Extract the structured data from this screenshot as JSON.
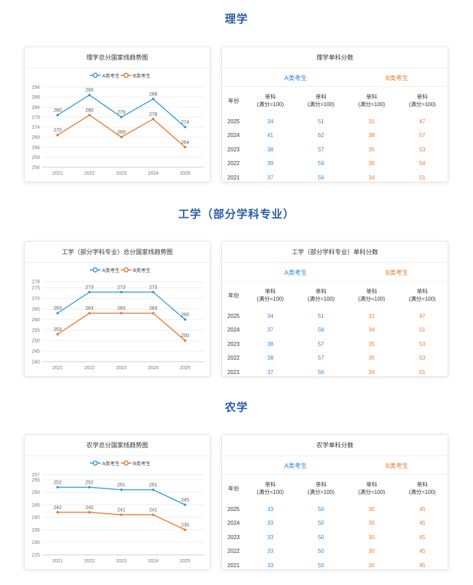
{
  "sections": [
    {
      "title": "理学",
      "chart": {
        "title": "理学总分国家线趋势图",
        "legend_a": "A类考生",
        "legend_b": "B类考生"
      },
      "table": {
        "title": "理学单科分数",
        "group_a": "A类考生",
        "group_b": "B类考生",
        "col_year": "年份",
        "col_1": "单科\n(满分=100)",
        "col_2": "单科\n(满分>100)",
        "col_3": "单科\n(满分=100)",
        "col_4": "单科\n(满分>100)",
        "rows": [
          {
            "year": "2025",
            "a1": "34",
            "a2": "51",
            "b1": "31",
            "b2": "47"
          },
          {
            "year": "2024",
            "a1": "41",
            "a2": "62",
            "b1": "38",
            "b2": "57"
          },
          {
            "year": "2023",
            "a1": "38",
            "a2": "57",
            "b1": "35",
            "b2": "53"
          },
          {
            "year": "2022",
            "a1": "39",
            "a2": "59",
            "b1": "36",
            "b2": "54"
          },
          {
            "year": "2021",
            "a1": "37",
            "a2": "56",
            "b1": "34",
            "b2": "51"
          }
        ]
      }
    },
    {
      "title": "工学（部分学科专业）",
      "chart": {
        "title": "工学（部分学科专业）总分国家线趋势图",
        "legend_a": "A类考生",
        "legend_b": "B类考生"
      },
      "table": {
        "title": "工学（部分学科专业）单科分数",
        "group_a": "A类考生",
        "group_b": "B类考生",
        "col_year": "年份",
        "col_1": "单科\n(满分=100)",
        "col_2": "单科\n(满分>100)",
        "col_3": "单科\n(满分=100)",
        "col_4": "单科\n(满分>100)",
        "rows": [
          {
            "year": "2025",
            "a1": "34",
            "a2": "51",
            "b1": "31",
            "b2": "47"
          },
          {
            "year": "2024",
            "a1": "37",
            "a2": "56",
            "b1": "34",
            "b2": "51"
          },
          {
            "year": "2023",
            "a1": "38",
            "a2": "57",
            "b1": "35",
            "b2": "53"
          },
          {
            "year": "2022",
            "a1": "38",
            "a2": "57",
            "b1": "35",
            "b2": "53"
          },
          {
            "year": "2021",
            "a1": "37",
            "a2": "56",
            "b1": "34",
            "b2": "51"
          }
        ]
      }
    },
    {
      "title": "农学",
      "chart": {
        "title": "农学总分国家线趋势图",
        "legend_a": "A类考生",
        "legend_b": "B类考生"
      },
      "table": {
        "title": "农学单科分数",
        "group_a": "A类考生",
        "group_b": "B类考生",
        "col_year": "年份",
        "col_1": "单科\n(满分=100)",
        "col_2": "单科\n(满分>100)",
        "col_3": "单科\n(满分=100)",
        "col_4": "单科\n(满分>100)",
        "rows": [
          {
            "year": "2025",
            "a1": "33",
            "a2": "50",
            "b1": "30",
            "b2": "45"
          },
          {
            "year": "2024",
            "a1": "33",
            "a2": "50",
            "b1": "30",
            "b2": "45"
          },
          {
            "year": "2023",
            "a1": "33",
            "a2": "50",
            "b1": "30",
            "b2": "45"
          },
          {
            "year": "2022",
            "a1": "33",
            "a2": "50",
            "b1": "30",
            "b2": "45"
          },
          {
            "year": "2021",
            "a1": "33",
            "a2": "50",
            "b1": "30",
            "b2": "45"
          }
        ]
      }
    }
  ],
  "colors": {
    "series_a": "#2e9ad6",
    "series_b": "#e8782a",
    "title": "#2a5ca8"
  },
  "chart_data": [
    {
      "type": "line",
      "title": "理学总分国家线趋势图",
      "categories": [
        "2021",
        "2022",
        "2023",
        "2024",
        "2025"
      ],
      "series": [
        {
          "name": "A类考生",
          "values": [
            280,
            290,
            279,
            288,
            274
          ]
        },
        {
          "name": "B类考生",
          "values": [
            270,
            280,
            269,
            278,
            264
          ]
        }
      ],
      "yticks": [
        254,
        259,
        264,
        269,
        274,
        279,
        284,
        289,
        294
      ],
      "ylim": [
        254,
        294
      ],
      "grid": true,
      "legend": "top-center"
    },
    {
      "type": "line",
      "title": "工学（部分学科专业）总分国家线趋势图",
      "categories": [
        "2021",
        "2022",
        "2023",
        "2024",
        "2025"
      ],
      "series": [
        {
          "name": "A类考生",
          "values": [
            263,
            273,
            273,
            273,
            260
          ]
        },
        {
          "name": "B类考生",
          "values": [
            253,
            263,
            263,
            263,
            250
          ]
        }
      ],
      "yticks": [
        240,
        245,
        250,
        255,
        260,
        265,
        270,
        275,
        278
      ],
      "ylim": [
        240,
        278
      ],
      "grid": true,
      "legend": "top-center"
    },
    {
      "type": "line",
      "title": "农学总分国家线趋势图",
      "categories": [
        "2021",
        "2022",
        "2023",
        "2024",
        "2025"
      ],
      "series": [
        {
          "name": "A类考生",
          "values": [
            252,
            252,
            251,
            251,
            245
          ]
        },
        {
          "name": "B类考生",
          "values": [
            242,
            242,
            241,
            241,
            235
          ]
        }
      ],
      "yticks": [
        225,
        230,
        235,
        240,
        245,
        250,
        255,
        257
      ],
      "ylim": [
        225,
        257
      ],
      "grid": true,
      "legend": "top-center"
    }
  ]
}
